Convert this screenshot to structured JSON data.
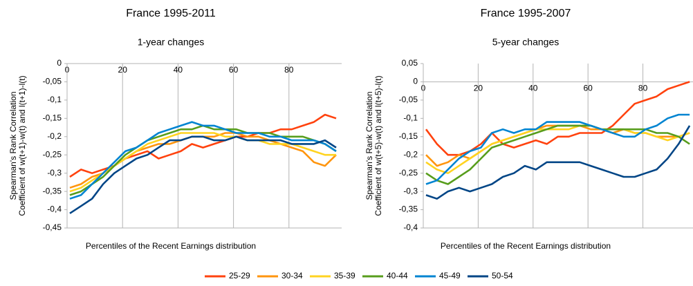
{
  "chart_data": [
    {
      "type": "line",
      "title": "France 1995-2011",
      "subtitle": "1-year changes",
      "xlabel": "Percentiles of the Recent Earnings distribution",
      "ylabel": [
        "Spearman's Rank Correlation",
        "Coefficient of w(t+1)-w(t) and l(t+1)-l(t)"
      ],
      "x": [
        1,
        5,
        9,
        13,
        17,
        21,
        25,
        29,
        33,
        37,
        41,
        45,
        49,
        53,
        57,
        61,
        65,
        69,
        73,
        77,
        81,
        85,
        89,
        93,
        97
      ],
      "xlim": [
        0,
        99
      ],
      "xticks": [
        0,
        20,
        40,
        60,
        80
      ],
      "ylim": [
        -0.45,
        0
      ],
      "yticks": [
        0,
        {
          "value": -0.05,
          "label": "-0,05"
        },
        {
          "value": -0.1,
          "label": "-0,1"
        },
        {
          "value": -0.15,
          "label": "-0,15"
        },
        {
          "value": -0.2,
          "label": "-0,2"
        },
        {
          "value": -0.25,
          "label": "-0,25"
        },
        {
          "value": -0.3,
          "label": "-0,3"
        },
        {
          "value": -0.35,
          "label": "-0,35"
        },
        {
          "value": -0.4,
          "label": "-0,4"
        },
        {
          "value": -0.45,
          "label": "-0,45"
        }
      ],
      "grid": true,
      "series": [
        {
          "name": "25-29",
          "color": "#ff420e",
          "values": [
            -0.31,
            -0.29,
            -0.3,
            -0.29,
            -0.28,
            -0.26,
            -0.25,
            -0.24,
            -0.26,
            -0.25,
            -0.24,
            -0.22,
            -0.23,
            -0.22,
            -0.21,
            -0.2,
            -0.2,
            -0.19,
            -0.19,
            -0.18,
            -0.18,
            -0.17,
            -0.16,
            -0.14,
            -0.15
          ]
        },
        {
          "name": "30-34",
          "color": "#ff950e",
          "values": [
            -0.34,
            -0.33,
            -0.31,
            -0.3,
            -0.28,
            -0.26,
            -0.24,
            -0.23,
            -0.22,
            -0.22,
            -0.21,
            -0.2,
            -0.2,
            -0.2,
            -0.19,
            -0.19,
            -0.2,
            -0.2,
            -0.21,
            -0.22,
            -0.23,
            -0.24,
            -0.27,
            -0.28,
            -0.25
          ]
        },
        {
          "name": "35-39",
          "color": "#ffd320",
          "values": [
            -0.35,
            -0.34,
            -0.32,
            -0.3,
            -0.28,
            -0.26,
            -0.24,
            -0.22,
            -0.21,
            -0.2,
            -0.19,
            -0.19,
            -0.19,
            -0.19,
            -0.2,
            -0.2,
            -0.21,
            -0.21,
            -0.22,
            -0.22,
            -0.22,
            -0.23,
            -0.24,
            -0.25,
            -0.25
          ]
        },
        {
          "name": "40-44",
          "color": "#579d1c",
          "values": [
            -0.36,
            -0.35,
            -0.33,
            -0.31,
            -0.28,
            -0.25,
            -0.23,
            -0.21,
            -0.2,
            -0.19,
            -0.18,
            -0.18,
            -0.17,
            -0.18,
            -0.18,
            -0.18,
            -0.19,
            -0.19,
            -0.19,
            -0.2,
            -0.2,
            -0.2,
            -0.21,
            -0.22,
            -0.24
          ]
        },
        {
          "name": "45-49",
          "color": "#0084d1",
          "values": [
            -0.37,
            -0.36,
            -0.33,
            -0.3,
            -0.27,
            -0.24,
            -0.23,
            -0.21,
            -0.19,
            -0.18,
            -0.17,
            -0.16,
            -0.17,
            -0.17,
            -0.18,
            -0.19,
            -0.19,
            -0.19,
            -0.2,
            -0.2,
            -0.21,
            -0.21,
            -0.21,
            -0.22,
            -0.24
          ]
        },
        {
          "name": "50-54",
          "color": "#004586",
          "values": [
            -0.41,
            -0.39,
            -0.37,
            -0.33,
            -0.3,
            -0.28,
            -0.26,
            -0.25,
            -0.23,
            -0.21,
            -0.21,
            -0.2,
            -0.2,
            -0.21,
            -0.21,
            -0.2,
            -0.21,
            -0.21,
            -0.21,
            -0.21,
            -0.22,
            -0.22,
            -0.22,
            -0.21,
            -0.23
          ]
        }
      ]
    },
    {
      "type": "line",
      "title": "France 1995-2007",
      "subtitle": "5-year changes",
      "xlabel": "Percentiles of the Recent Earnings distribution",
      "ylabel": [
        "Spearman's Rank Correlation",
        "Coefficient of w(t+5)-w(t) and l(t+5)-l(t)"
      ],
      "x": [
        1,
        5,
        9,
        13,
        17,
        21,
        25,
        29,
        33,
        37,
        41,
        45,
        49,
        53,
        57,
        61,
        65,
        69,
        73,
        77,
        81,
        85,
        89,
        93,
        97
      ],
      "xlim": [
        0,
        99
      ],
      "xticks": [
        0,
        20,
        40,
        60,
        80
      ],
      "ylim": [
        -0.4,
        0.05
      ],
      "yticks": [
        {
          "value": 0.05,
          "label": "0,05"
        },
        0,
        {
          "value": -0.05,
          "label": "-0,05"
        },
        {
          "value": -0.1,
          "label": "-0,1"
        },
        {
          "value": -0.15,
          "label": "-0,15"
        },
        {
          "value": -0.2,
          "label": "-0,2"
        },
        {
          "value": -0.25,
          "label": "-0,25"
        },
        {
          "value": -0.3,
          "label": "-0,3"
        },
        {
          "value": -0.35,
          "label": "-0,35"
        },
        {
          "value": -0.4,
          "label": "-0,4"
        }
      ],
      "grid": true,
      "series": [
        {
          "color": "#ff420e",
          "values": [
            -0.13,
            -0.17,
            -0.2,
            -0.2,
            -0.19,
            -0.17,
            -0.14,
            -0.17,
            -0.18,
            -0.17,
            -0.16,
            -0.17,
            -0.15,
            -0.15,
            -0.14,
            -0.14,
            -0.14,
            -0.12,
            -0.09,
            -0.06,
            -0.05,
            -0.04,
            -0.02,
            -0.01,
            0.0
          ]
        },
        {
          "color": "#ff950e",
          "values": [
            -0.2,
            -0.23,
            -0.22,
            -0.2,
            -0.21,
            -0.19,
            -0.17,
            -0.16,
            -0.15,
            -0.14,
            -0.13,
            -0.12,
            -0.12,
            -0.12,
            -0.12,
            -0.13,
            -0.13,
            -0.14,
            -0.13,
            -0.14,
            -0.14,
            -0.15,
            -0.15,
            -0.15,
            -0.14
          ]
        },
        {
          "color": "#ffd320",
          "values": [
            -0.22,
            -0.24,
            -0.25,
            -0.23,
            -0.21,
            -0.19,
            -0.17,
            -0.16,
            -0.15,
            -0.14,
            -0.13,
            -0.13,
            -0.13,
            -0.13,
            -0.12,
            -0.12,
            -0.13,
            -0.13,
            -0.13,
            -0.14,
            -0.14,
            -0.15,
            -0.16,
            -0.15,
            -0.14
          ]
        },
        {
          "color": "#579d1c",
          "values": [
            -0.25,
            -0.27,
            -0.28,
            -0.26,
            -0.24,
            -0.21,
            -0.18,
            -0.17,
            -0.16,
            -0.15,
            -0.14,
            -0.13,
            -0.12,
            -0.12,
            -0.12,
            -0.12,
            -0.13,
            -0.13,
            -0.13,
            -0.13,
            -0.13,
            -0.14,
            -0.14,
            -0.15,
            -0.17
          ]
        },
        {
          "color": "#0084d1",
          "values": [
            -0.28,
            -0.27,
            -0.24,
            -0.21,
            -0.19,
            -0.18,
            -0.14,
            -0.13,
            -0.14,
            -0.13,
            -0.13,
            -0.11,
            -0.11,
            -0.11,
            -0.11,
            -0.12,
            -0.13,
            -0.14,
            -0.15,
            -0.15,
            -0.13,
            -0.12,
            -0.1,
            -0.09,
            -0.09
          ]
        },
        {
          "color": "#004586",
          "values": [
            -0.31,
            -0.32,
            -0.3,
            -0.29,
            -0.3,
            -0.29,
            -0.28,
            -0.26,
            -0.25,
            -0.23,
            -0.24,
            -0.22,
            -0.22,
            -0.22,
            -0.22,
            -0.23,
            -0.24,
            -0.25,
            -0.26,
            -0.26,
            -0.25,
            -0.24,
            -0.21,
            -0.17,
            -0.12
          ]
        }
      ]
    }
  ]
}
